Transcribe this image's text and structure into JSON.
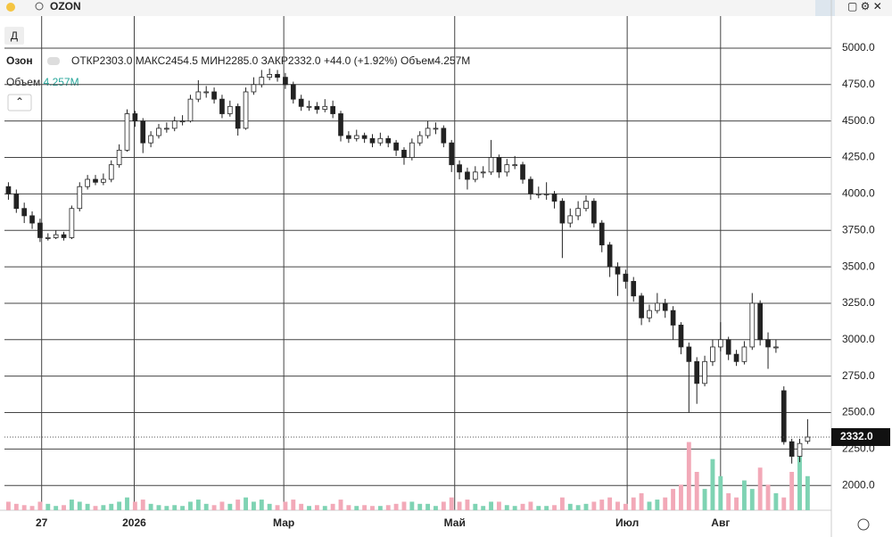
{
  "header": {
    "search": "OZON",
    "interval": "Д",
    "symbol": "Озон",
    "legend": [
      {
        "label": "ОТКР",
        "text": "2303.0"
      },
      {
        "label": "МАКС",
        "text": "2454.5"
      },
      {
        "label": "МИН",
        "text": "2285.0"
      },
      {
        "label": "ЗАКР",
        "text": "2332.0"
      },
      {
        "label": "",
        "text": "+44.0 (+1.92%)"
      },
      {
        "label": "Объем",
        "text": "4.257M"
      }
    ],
    "volume_label": "Объем",
    "volume_text": "4.257M"
  },
  "chart_data": {
    "type": "candlestick",
    "up_color": "#ffffff",
    "down_color": "#222222",
    "wick_color": "#222222",
    "volume_up_color": "#7fd3b3",
    "volume_down_color": "#f2a9b8",
    "xlim": [
      -0.5,
      104
    ],
    "xticks": [
      {
        "value": 4.2,
        "label": "27"
      },
      {
        "value": 15.9,
        "label": "2026"
      },
      {
        "value": 34.8,
        "label": "Мар"
      },
      {
        "value": 56.4,
        "label": "Май"
      },
      {
        "value": 78.2,
        "label": "Июл"
      },
      {
        "value": 90,
        "label": "Авг"
      }
    ],
    "ylim": [
      1830,
      5220
    ],
    "yticks": [
      {
        "value": 2000,
        "label": "2000.0"
      },
      {
        "value": 2250,
        "label": "2250.0"
      },
      {
        "value": 2500,
        "label": "2500.0"
      },
      {
        "value": 2750,
        "label": "2750.0"
      },
      {
        "value": 3000,
        "label": "3000.0"
      },
      {
        "value": 3250,
        "label": "3250.0"
      },
      {
        "value": 3500,
        "label": "3500.0"
      },
      {
        "value": 3750,
        "label": "3750.0"
      },
      {
        "value": 4000,
        "label": "4000.0"
      },
      {
        "value": 4250,
        "label": "4250.0"
      },
      {
        "value": 4500,
        "label": "4500.0"
      },
      {
        "value": 4750,
        "label": "4750.0"
      },
      {
        "value": 5000,
        "label": "5000.0"
      }
    ],
    "y2lim": [
      0,
      36
    ],
    "last_price": {
      "value": 2332,
      "label": "2332.0"
    },
    "open": [
      4050,
      4000,
      3900,
      3850,
      3800,
      3700,
      3700,
      3720,
      3700,
      3900,
      4050,
      4100,
      4080,
      4100,
      4200,
      4300,
      4550,
      4500,
      4350,
      4400,
      4450,
      4450,
      4500,
      4500,
      4650,
      4700,
      4700,
      4650,
      4550,
      4600,
      4450,
      4700,
      4750,
      4800,
      4820,
      4800,
      4750,
      4650,
      4600,
      4600,
      4580,
      4600,
      4550,
      4400,
      4380,
      4400,
      4380,
      4350,
      4380,
      4350,
      4300,
      4250,
      4350,
      4400,
      4450,
      4450,
      4350,
      4200,
      4150,
      4100,
      4150,
      4150,
      4250,
      4150,
      4200,
      4200,
      4100,
      4000,
      4000,
      4000,
      3950,
      3800,
      3850,
      3900,
      3950,
      3800,
      3650,
      3500,
      3450,
      3400,
      3300,
      3150,
      3200,
      3250,
      3200,
      3100,
      2950,
      2850,
      2700,
      2850,
      2950,
      3000,
      2900,
      2850,
      2950,
      3250,
      3000,
      2950,
      2650,
      2300,
      2200,
      2303
    ],
    "high": [
      4080,
      4030,
      3940,
      3880,
      3830,
      3730,
      3750,
      3740,
      3920,
      4080,
      4130,
      4130,
      4140,
      4230,
      4340,
      4580,
      4570,
      4520,
      4430,
      4480,
      4490,
      4530,
      4540,
      4680,
      4780,
      4740,
      4730,
      4680,
      4640,
      4620,
      4730,
      4800,
      4850,
      4860,
      4850,
      4830,
      4770,
      4680,
      4640,
      4630,
      4650,
      4640,
      4570,
      4430,
      4440,
      4420,
      4410,
      4420,
      4400,
      4370,
      4320,
      4380,
      4430,
      4500,
      4490,
      4470,
      4370,
      4230,
      4180,
      4190,
      4190,
      4370,
      4270,
      4240,
      4260,
      4220,
      4120,
      4050,
      4080,
      4020,
      3970,
      3900,
      3950,
      3990,
      3970,
      3820,
      3670,
      3530,
      3480,
      3430,
      3320,
      3240,
      3320,
      3280,
      3230,
      3120,
      2980,
      2880,
      2890,
      3000,
      3120,
      3020,
      2930,
      2990,
      3320,
      3270,
      3050,
      3000,
      2680,
      2320,
      2320,
      2454.5
    ],
    "low": [
      3960,
      3870,
      3800,
      3760,
      3670,
      3680,
      3690,
      3680,
      3690,
      3880,
      4030,
      4060,
      4060,
      4080,
      4180,
      4290,
      4460,
      4280,
      4320,
      4380,
      4420,
      4430,
      4470,
      4490,
      4630,
      4660,
      4620,
      4520,
      4530,
      4400,
      4440,
      4680,
      4730,
      4780,
      4770,
      4720,
      4620,
      4570,
      4570,
      4550,
      4560,
      4520,
      4360,
      4350,
      4360,
      4350,
      4320,
      4330,
      4320,
      4260,
      4200,
      4230,
      4330,
      4380,
      4410,
      4320,
      4150,
      4100,
      4030,
      4080,
      4110,
      4130,
      4110,
      4120,
      4170,
      4070,
      3960,
      3970,
      3960,
      3900,
      3560,
      3770,
      3820,
      3880,
      3770,
      3600,
      3430,
      3300,
      3350,
      3260,
      3100,
      3120,
      3180,
      3150,
      3000,
      2900,
      2500,
      2560,
      2680,
      2820,
      2920,
      2860,
      2820,
      2830,
      2930,
      2960,
      2800,
      2910,
      2280,
      2150,
      2160,
      2285
    ],
    "close": [
      4000,
      3900,
      3850,
      3800,
      3700,
      3700,
      3720,
      3700,
      3900,
      4050,
      4100,
      4080,
      4100,
      4200,
      4300,
      4550,
      4500,
      4350,
      4400,
      4450,
      4450,
      4500,
      4500,
      4650,
      4700,
      4700,
      4650,
      4550,
      4600,
      4450,
      4700,
      4750,
      4800,
      4820,
      4800,
      4750,
      4650,
      4600,
      4600,
      4580,
      4600,
      4550,
      4400,
      4380,
      4400,
      4380,
      4350,
      4380,
      4350,
      4300,
      4250,
      4350,
      4400,
      4450,
      4450,
      4350,
      4200,
      4150,
      4100,
      4150,
      4150,
      4250,
      4150,
      4200,
      4200,
      4100,
      4000,
      4000,
      4000,
      3950,
      3800,
      3850,
      3900,
      3950,
      3800,
      3650,
      3500,
      3450,
      3400,
      3300,
      3150,
      3200,
      3250,
      3200,
      3100,
      2950,
      2850,
      2700,
      2850,
      2950,
      3000,
      2900,
      2850,
      2950,
      3250,
      3000,
      2950,
      2950,
      2300,
      2200,
      2288,
      2332
    ],
    "volume": [
      2,
      1.5,
      1.2,
      1,
      2,
      1.5,
      1,
      1.2,
      2.5,
      2,
      1.5,
      1,
      1.2,
      1.5,
      2,
      3,
      2,
      2.5,
      1.5,
      1.2,
      1,
      1.2,
      1,
      2,
      2.5,
      1.5,
      1.2,
      2,
      1.5,
      2.5,
      3,
      2,
      2.5,
      1.5,
      1.2,
      2,
      2.5,
      1.5,
      1,
      1.2,
      1,
      1.5,
      2.5,
      1.2,
      1,
      1.2,
      1,
      1,
      1.2,
      1.5,
      2,
      2,
      1.5,
      1.5,
      1,
      2,
      3,
      2,
      2.5,
      1.5,
      1,
      2,
      2,
      1.2,
      1,
      1.5,
      2,
      1,
      1,
      1.2,
      3,
      1.5,
      1.2,
      1.5,
      2,
      2.5,
      3,
      2,
      1.5,
      3,
      4,
      2,
      2.5,
      3,
      5,
      6,
      16,
      9,
      5,
      12,
      8,
      4,
      3,
      7,
      5,
      10,
      6,
      4,
      3,
      9,
      14,
      8
    ]
  }
}
